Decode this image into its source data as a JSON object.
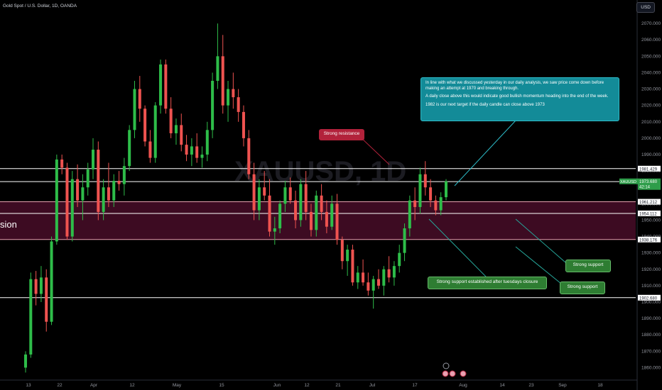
{
  "header": {
    "symbol_title": "Gold Spot / U.S. Dollar, 1D, OANDA",
    "currency": "USD"
  },
  "watermark": {
    "symbol": "XAUUSD, 1D",
    "description": "Gold Spot / U.S. Dollar"
  },
  "annotations": {
    "analysis_p1": "In line with what we discussed yesterday in our daily analysis, we saw price come down before making an attempt at 1970 and breaking through.",
    "analysis_p2": "A daily close above this would indicate good bullish momentum heading into the end of the week.",
    "analysis_p3": "1982 is our next target if the daily candle can close above 1973",
    "resistance": "Strong resistance",
    "support_1": "Strong support",
    "support_2": "Strong support",
    "support_3": "Strong support established after tuesdays closure",
    "left_cut_text": "sion"
  },
  "colors": {
    "up": "#26a69a",
    "up_bright": "#2ebd49",
    "down": "#ef5350",
    "zone": "#3d0b22",
    "level_line": "#ffffff",
    "price_badge": "#2e9d4a",
    "teal": "#138b98",
    "resistance": "#b2223b",
    "support": "#2e7d32"
  },
  "chart_data": {
    "type": "candlestick",
    "ylim": [
      1855,
      2080
    ],
    "y_ticks": [
      1860,
      1870,
      1880,
      1890,
      1900,
      1910,
      1920,
      1930,
      1940,
      1950,
      1960,
      1970,
      1980,
      1990,
      2000,
      2010,
      2020,
      2030,
      2040,
      2050,
      2060,
      2070
    ],
    "y_tick_labels": [
      "1860.000",
      "1870.000",
      "1880.000",
      "1890.000",
      "1900.000",
      "1910.000",
      "1920.000",
      "1930.000",
      "1940.000",
      "1950.000",
      "1960.000",
      "1970.000",
      "1980.000",
      "1990.000",
      "2000.000",
      "2010.000",
      "2020.000",
      "2030.000",
      "2040.000",
      "2050.000",
      "2060.000",
      "2070.000"
    ],
    "x_tick_labels": [
      "13",
      "22",
      "Apr",
      "12",
      "May",
      "15",
      "Jun",
      "12",
      "21",
      "Jul",
      "17",
      "Aug",
      "14",
      "23",
      "Sep",
      "18"
    ],
    "levels": [
      1981.429,
      1973.515,
      1961.212,
      1954.112,
      1938.176,
      1902.68
    ],
    "level_labels": [
      "1981.429",
      "1973.515",
      "1961.212",
      "1954.112",
      "1938.176",
      "1902.680"
    ],
    "current_price": {
      "symbol": "XAUUSD",
      "price": "1973.680",
      "countdown": "42:14"
    },
    "zone": {
      "top": 1961.212,
      "bottom": 1938.176
    },
    "candles": [
      {
        "o": 1860,
        "h": 1870,
        "l": 1857,
        "c": 1868
      },
      {
        "o": 1868,
        "h": 1918,
        "l": 1866,
        "c": 1914
      },
      {
        "o": 1914,
        "h": 1919,
        "l": 1898,
        "c": 1905
      },
      {
        "o": 1905,
        "h": 1922,
        "l": 1900,
        "c": 1915
      },
      {
        "o": 1915,
        "h": 1920,
        "l": 1882,
        "c": 1888
      },
      {
        "o": 1888,
        "h": 1940,
        "l": 1886,
        "c": 1937
      },
      {
        "o": 1937,
        "h": 1990,
        "l": 1935,
        "c": 1987
      },
      {
        "o": 1987,
        "h": 1990,
        "l": 1978,
        "c": 1982
      },
      {
        "o": 1982,
        "h": 1985,
        "l": 1938,
        "c": 1940
      },
      {
        "o": 1940,
        "h": 1980,
        "l": 1937,
        "c": 1975
      },
      {
        "o": 1975,
        "h": 1984,
        "l": 1958,
        "c": 1962
      },
      {
        "o": 1962,
        "h": 1978,
        "l": 1950,
        "c": 1970
      },
      {
        "o": 1970,
        "h": 1985,
        "l": 1965,
        "c": 1981
      },
      {
        "o": 1981,
        "h": 2000,
        "l": 1975,
        "c": 1993
      },
      {
        "o": 1993,
        "h": 1998,
        "l": 1950,
        "c": 1955
      },
      {
        "o": 1955,
        "h": 1975,
        "l": 1950,
        "c": 1970
      },
      {
        "o": 1970,
        "h": 1985,
        "l": 1958,
        "c": 1962
      },
      {
        "o": 1962,
        "h": 1978,
        "l": 1958,
        "c": 1974
      },
      {
        "o": 1974,
        "h": 1980,
        "l": 1968,
        "c": 1972
      },
      {
        "o": 1972,
        "h": 1988,
        "l": 1965,
        "c": 1983
      },
      {
        "o": 1983,
        "h": 2008,
        "l": 1980,
        "c": 2005
      },
      {
        "o": 2005,
        "h": 2035,
        "l": 2000,
        "c": 2030
      },
      {
        "o": 2030,
        "h": 2038,
        "l": 2010,
        "c": 2018
      },
      {
        "o": 2018,
        "h": 2020,
        "l": 1995,
        "c": 1998
      },
      {
        "o": 1998,
        "h": 2005,
        "l": 1985,
        "c": 1988
      },
      {
        "o": 1988,
        "h": 2022,
        "l": 1985,
        "c": 2020
      },
      {
        "o": 2020,
        "h": 2048,
        "l": 2015,
        "c": 2045
      },
      {
        "o": 2045,
        "h": 2048,
        "l": 2015,
        "c": 2018
      },
      {
        "o": 2018,
        "h": 2025,
        "l": 2000,
        "c": 2003
      },
      {
        "o": 2003,
        "h": 2012,
        "l": 1996,
        "c": 2008
      },
      {
        "o": 2008,
        "h": 2015,
        "l": 1992,
        "c": 1996
      },
      {
        "o": 1996,
        "h": 2002,
        "l": 1986,
        "c": 1990
      },
      {
        "o": 1990,
        "h": 2000,
        "l": 1983,
        "c": 1995
      },
      {
        "o": 1995,
        "h": 2003,
        "l": 1985,
        "c": 1988
      },
      {
        "o": 1988,
        "h": 1995,
        "l": 1982,
        "c": 1990
      },
      {
        "o": 1990,
        "h": 2010,
        "l": 1986,
        "c": 2005
      },
      {
        "o": 2005,
        "h": 2040,
        "l": 2000,
        "c": 2035
      },
      {
        "o": 2035,
        "h": 2070,
        "l": 2030,
        "c": 2050
      },
      {
        "o": 2050,
        "h": 2063,
        "l": 2015,
        "c": 2020
      },
      {
        "o": 2020,
        "h": 2035,
        "l": 2010,
        "c": 2030
      },
      {
        "o": 2030,
        "h": 2040,
        "l": 2018,
        "c": 2025
      },
      {
        "o": 2025,
        "h": 2030,
        "l": 2010,
        "c": 2016
      },
      {
        "o": 2016,
        "h": 2020,
        "l": 1995,
        "c": 2000
      },
      {
        "o": 2000,
        "h": 2005,
        "l": 1975,
        "c": 1978
      },
      {
        "o": 1978,
        "h": 1985,
        "l": 1950,
        "c": 1956
      },
      {
        "o": 1956,
        "h": 1975,
        "l": 1950,
        "c": 1970
      },
      {
        "o": 1970,
        "h": 1980,
        "l": 1962,
        "c": 1965
      },
      {
        "o": 1965,
        "h": 1975,
        "l": 1940,
        "c": 1943
      },
      {
        "o": 1943,
        "h": 1952,
        "l": 1935,
        "c": 1945
      },
      {
        "o": 1945,
        "h": 1962,
        "l": 1942,
        "c": 1960
      },
      {
        "o": 1960,
        "h": 1974,
        "l": 1955,
        "c": 1970
      },
      {
        "o": 1970,
        "h": 1976,
        "l": 1960,
        "c": 1962
      },
      {
        "o": 1962,
        "h": 1968,
        "l": 1945,
        "c": 1950
      },
      {
        "o": 1950,
        "h": 1975,
        "l": 1946,
        "c": 1972
      },
      {
        "o": 1972,
        "h": 1980,
        "l": 1950,
        "c": 1955
      },
      {
        "o": 1955,
        "h": 1960,
        "l": 1940,
        "c": 1944
      },
      {
        "o": 1944,
        "h": 1968,
        "l": 1940,
        "c": 1965
      },
      {
        "o": 1965,
        "h": 1972,
        "l": 1950,
        "c": 1955
      },
      {
        "o": 1955,
        "h": 1962,
        "l": 1942,
        "c": 1946
      },
      {
        "o": 1946,
        "h": 1965,
        "l": 1944,
        "c": 1960
      },
      {
        "o": 1960,
        "h": 1966,
        "l": 1935,
        "c": 1938
      },
      {
        "o": 1938,
        "h": 1940,
        "l": 1920,
        "c": 1925
      },
      {
        "o": 1925,
        "h": 1935,
        "l": 1916,
        "c": 1932
      },
      {
        "o": 1932,
        "h": 1935,
        "l": 1910,
        "c": 1912
      },
      {
        "o": 1912,
        "h": 1922,
        "l": 1908,
        "c": 1918
      },
      {
        "o": 1918,
        "h": 1926,
        "l": 1910,
        "c": 1912
      },
      {
        "o": 1912,
        "h": 1918,
        "l": 1904,
        "c": 1907
      },
      {
        "o": 1907,
        "h": 1916,
        "l": 1896,
        "c": 1914
      },
      {
        "o": 1914,
        "h": 1920,
        "l": 1908,
        "c": 1910
      },
      {
        "o": 1910,
        "h": 1922,
        "l": 1904,
        "c": 1920
      },
      {
        "o": 1920,
        "h": 1928,
        "l": 1912,
        "c": 1915
      },
      {
        "o": 1915,
        "h": 1925,
        "l": 1910,
        "c": 1922
      },
      {
        "o": 1922,
        "h": 1935,
        "l": 1918,
        "c": 1930
      },
      {
        "o": 1930,
        "h": 1948,
        "l": 1925,
        "c": 1945
      },
      {
        "o": 1945,
        "h": 1965,
        "l": 1940,
        "c": 1962
      },
      {
        "o": 1962,
        "h": 1970,
        "l": 1950,
        "c": 1958
      },
      {
        "o": 1958,
        "h": 1982,
        "l": 1954,
        "c": 1978
      },
      {
        "o": 1978,
        "h": 1986,
        "l": 1965,
        "c": 1970
      },
      {
        "o": 1970,
        "h": 1975,
        "l": 1958,
        "c": 1962
      },
      {
        "o": 1962,
        "h": 1965,
        "l": 1953,
        "c": 1956
      },
      {
        "o": 1956,
        "h": 1967,
        "l": 1953,
        "c": 1964
      },
      {
        "o": 1964,
        "h": 1975,
        "l": 1962,
        "c": 1973.68
      }
    ]
  }
}
